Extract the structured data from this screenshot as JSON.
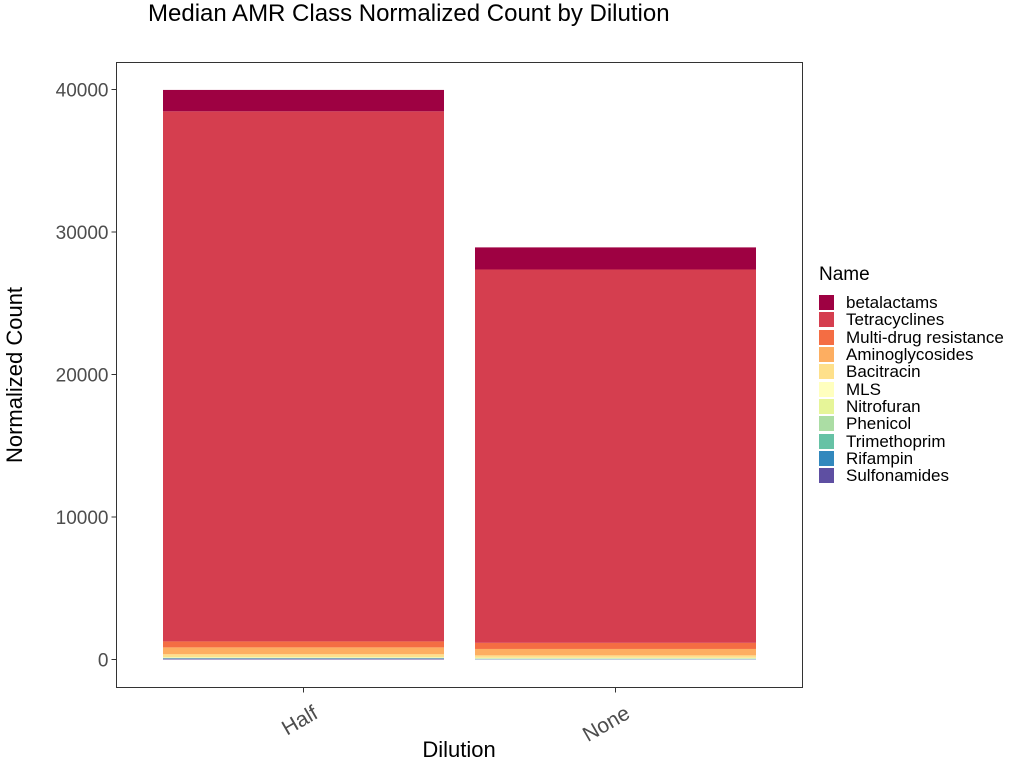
{
  "chart_data": {
    "type": "bar",
    "stacked": true,
    "title": "Median AMR Class Normalized Count by Dilution",
    "xlabel": "Dilution",
    "ylabel": "Normalized Count",
    "ylim": [
      -2000,
      42000
    ],
    "yticks": [
      0,
      10000,
      20000,
      30000,
      40000
    ],
    "categories": [
      "Half",
      "None"
    ],
    "legend_title": "Name",
    "legend_position": "right",
    "grid": false,
    "series": [
      {
        "name": "betalactams",
        "color": "#9E0142",
        "values": [
          1500,
          1550
        ]
      },
      {
        "name": "Tetracyclines",
        "color": "#D53E4F",
        "values": [
          37200,
          26200
        ]
      },
      {
        "name": "Multi-drug resistance",
        "color": "#F46D43",
        "values": [
          420,
          430
        ]
      },
      {
        "name": "Aminoglycosides",
        "color": "#FDAE61",
        "values": [
          480,
          450
        ]
      },
      {
        "name": "Bacitracin",
        "color": "#FEE08B",
        "values": [
          200,
          170
        ]
      },
      {
        "name": "MLS",
        "color": "#FFFFBF",
        "values": [
          30,
          30
        ]
      },
      {
        "name": "Nitrofuran",
        "color": "#E6F598",
        "values": [
          20,
          20
        ]
      },
      {
        "name": "Phenicol",
        "color": "#ABDDA4",
        "values": [
          20,
          20
        ]
      },
      {
        "name": "Trimethoprim",
        "color": "#66C2A5",
        "values": [
          20,
          20
        ]
      },
      {
        "name": "Rifampin",
        "color": "#3288BD",
        "values": [
          20,
          10
        ]
      },
      {
        "name": "Sulfonamides",
        "color": "#5E4FA2",
        "values": [
          60,
          20
        ]
      }
    ]
  }
}
